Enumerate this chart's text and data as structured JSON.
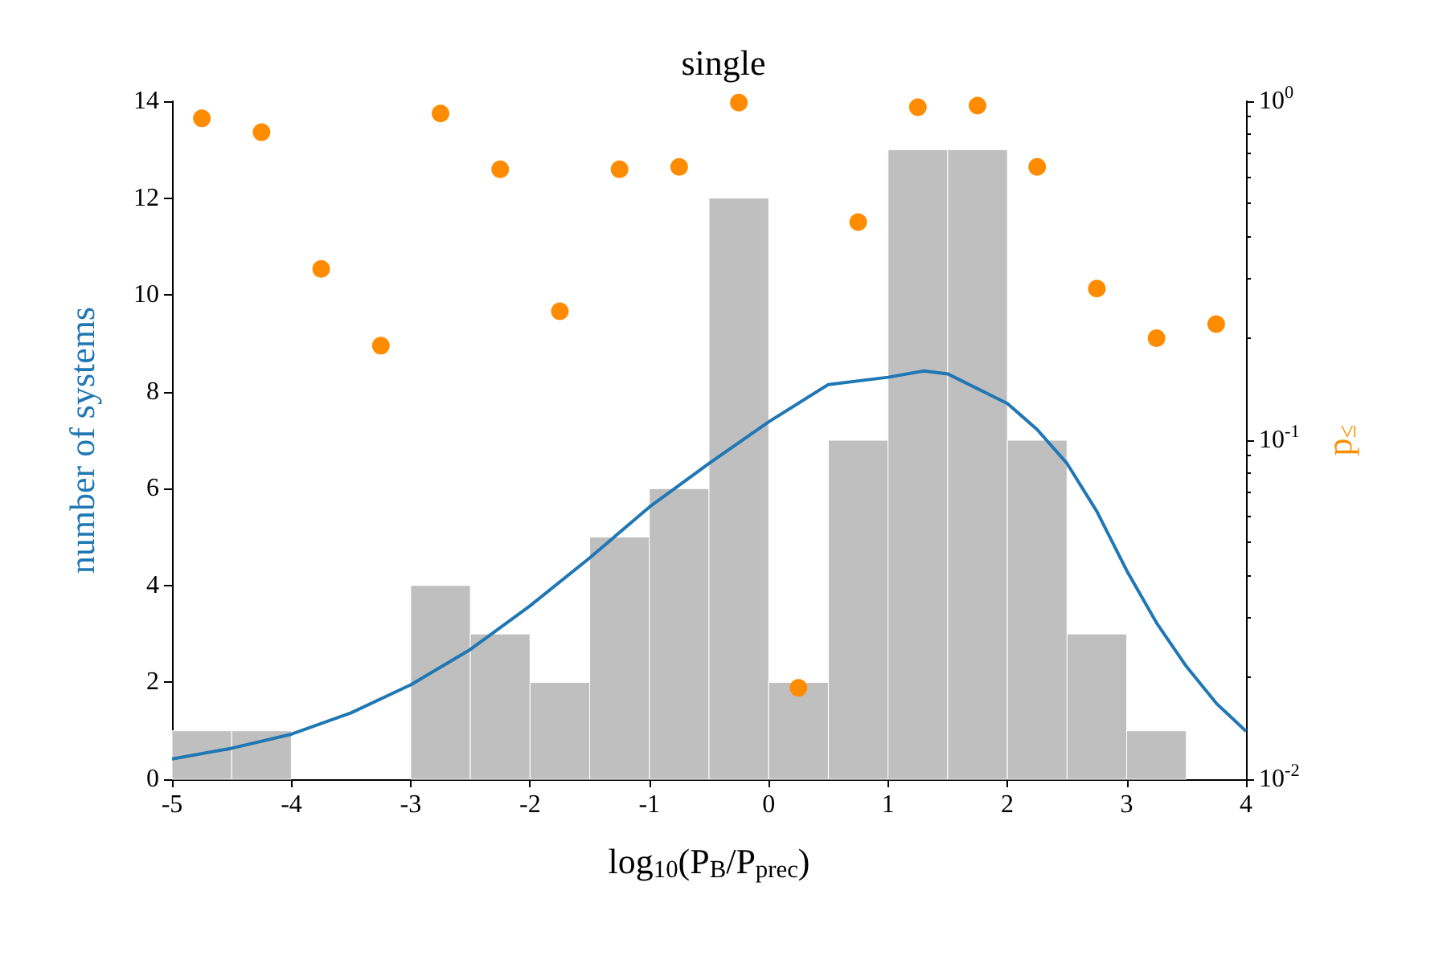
{
  "chart_data": {
    "type": "histogram",
    "title": "single",
    "xlabel": "log$_{10}$(P$_{B}$/P$_{prec}$)",
    "ylabel": "number of systems",
    "y2label": "p$_{≤}$",
    "bins": [
      -5,
      -4.5,
      -4,
      -3.5,
      -3,
      -2.5,
      -2,
      -1.5,
      -1,
      -0.5,
      0,
      0.5,
      1,
      1.5,
      2,
      2.5,
      3,
      3.5,
      4
    ],
    "series": [
      {
        "color": "#bfbfbf",
        "values": [
          1,
          1,
          0,
          0,
          4,
          3,
          2,
          5,
          6,
          12,
          2,
          7,
          13,
          13,
          7,
          3,
          1,
          0
        ]
      },
      {
        "type": "line",
        "color": "#1f77b4",
        "x": [
          -5,
          -4.5,
          -4,
          -3.5,
          -3,
          -2.5,
          -2,
          -1.5,
          -1,
          -0.5,
          0,
          0.5,
          1,
          1.3,
          1.5,
          2,
          2.25,
          2.5,
          2.75,
          3,
          3.25,
          3.5,
          3.75,
          4
        ],
        "values": [
          0.42,
          0.64,
          0.93,
          1.37,
          1.95,
          2.68,
          3.58,
          4.57,
          5.62,
          6.52,
          7.38,
          8.15,
          8.3,
          8.43,
          8.37,
          7.76,
          7.22,
          6.52,
          5.53,
          4.31,
          3.23,
          2.33,
          1.57,
          0.99
        ]
      },
      {
        "type": "scatter",
        "axis": "y2",
        "marker": "circle",
        "color": "#ff8c00",
        "x": [
          -4.75,
          -4.25,
          -3.75,
          -3.25,
          -2.75,
          -2.25,
          -1.75,
          -1.25,
          -0.75,
          -0.25,
          0.25,
          0.75,
          1.25,
          1.75,
          2.25,
          2.75,
          3.25,
          3.75
        ],
        "values": [
          0.89,
          0.81,
          0.32,
          0.19,
          0.92,
          0.63,
          0.24,
          0.63,
          0.64,
          0.99,
          0.0186,
          0.44,
          0.96,
          0.97,
          0.64,
          0.28,
          0.2,
          0.22
        ]
      }
    ],
    "xlim": [
      -5,
      4
    ],
    "xticks": [
      -5,
      -4,
      -3,
      -2,
      -1,
      0,
      1,
      2,
      3,
      4
    ],
    "ylim": [
      0,
      14
    ],
    "yticks": [
      0,
      2,
      4,
      6,
      8,
      10,
      12,
      14
    ],
    "y2lim": [
      0.01,
      1
    ],
    "y2ticks": [
      {
        "value": 0.01,
        "label": "10$^{-2}$"
      },
      {
        "value": 0.1,
        "label": "10$^{-1}$"
      },
      {
        "value": 1,
        "label": "10$^{0}$"
      }
    ],
    "log": "y2",
    "grid": false,
    "line_style": "solid"
  }
}
